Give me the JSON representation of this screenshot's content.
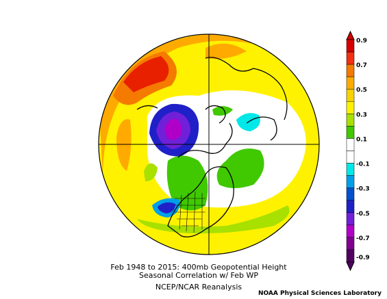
{
  "caption": {
    "line1": "Feb 1948 to 2015: 400mb Geopotential Height",
    "line2": "Seasonal Correlation w/ Feb WP",
    "source": "NCEP/NCAR Reanalysis"
  },
  "credit": "NOAA Physical Sciences Laboratory",
  "colorbar": {
    "labels": [
      "0.9",
      "0.7",
      "0.5",
      "0.3",
      "0.1",
      "-0.1",
      "-0.3",
      "-0.5",
      "-0.7",
      "-0.9"
    ],
    "colors": [
      "#d60000",
      "#f03010",
      "#f57a00",
      "#ffaa00",
      "#f5d200",
      "#fff200",
      "#a8e000",
      "#40c800",
      "#ffffff",
      "#ffffff",
      "#00e8e8",
      "#00a0e8",
      "#0050d0",
      "#2020c8",
      "#7020d8",
      "#b000c8",
      "#800090",
      "#500060"
    ]
  }
}
